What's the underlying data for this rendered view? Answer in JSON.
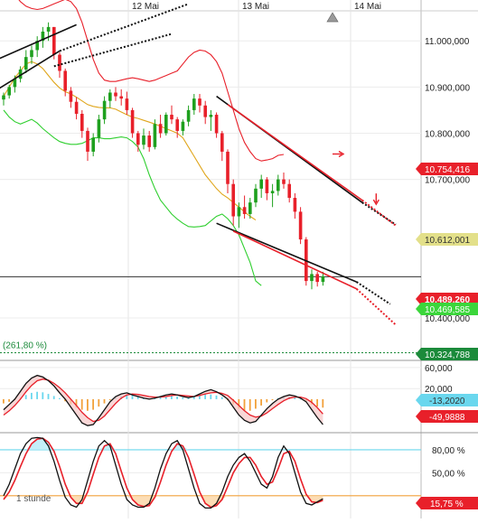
{
  "chart_data": {
    "type": "candlestick",
    "timeframe": "1 stunde",
    "dates": [
      "12 Mai",
      "13 Mai",
      "14 Mai"
    ],
    "price_axis": {
      "ticks": [
        "11.000,000",
        "10.900,000",
        "10.800,000",
        "10.700,000",
        "10.400,000"
      ],
      "tick_values": [
        11000,
        10900,
        10800,
        10700,
        10400
      ],
      "range": [
        10310,
        11065
      ]
    },
    "price_tags": [
      {
        "label": "10.754,416",
        "value": 10754.416,
        "color": "#e8202a",
        "text_color": "#ffffff"
      },
      {
        "label": "10.612,001",
        "value": 10612.001,
        "color": "#e3e08a",
        "text_color": "#333333"
      },
      {
        "label": "10.489,260",
        "value": 10489.26,
        "color": "#e8202a",
        "text_color": "#ffffff"
      },
      {
        "label": "10.469,585",
        "value": 10469.585,
        "color": "#3bd63b",
        "text_color": "#ffffff"
      },
      {
        "label": "10.324,788",
        "value": 10324.788,
        "color": "#1b8a3a",
        "text_color": "#ffffff"
      }
    ],
    "fib_label": "(261,80 %)",
    "fib_value": 10324.788,
    "candles": [
      [
        10873,
        10888,
        10860,
        10882
      ],
      [
        10882,
        10905,
        10875,
        10900
      ],
      [
        10900,
        10925,
        10888,
        10918
      ],
      [
        10918,
        10945,
        10910,
        10938
      ],
      [
        10938,
        10980,
        10930,
        10965
      ],
      [
        10965,
        10990,
        10950,
        10980
      ],
      [
        10980,
        11010,
        10965,
        11000
      ],
      [
        11000,
        11030,
        10985,
        11020
      ],
      [
        11020,
        11040,
        11000,
        11030
      ],
      [
        11030,
        11030,
        10960,
        10970
      ],
      [
        10970,
        10975,
        10920,
        10935
      ],
      [
        10935,
        10940,
        10880,
        10892
      ],
      [
        10892,
        10900,
        10855,
        10868
      ],
      [
        10868,
        10878,
        10830,
        10842
      ],
      [
        10842,
        10850,
        10790,
        10805
      ],
      [
        10805,
        10812,
        10740,
        10760
      ],
      [
        10760,
        10800,
        10750,
        10790
      ],
      [
        10790,
        10840,
        10780,
        10830
      ],
      [
        10830,
        10880,
        10820,
        10870
      ],
      [
        10870,
        10895,
        10855,
        10888
      ],
      [
        10888,
        10900,
        10870,
        10880
      ],
      [
        10880,
        10895,
        10860,
        10875
      ],
      [
        10875,
        10890,
        10840,
        10850
      ],
      [
        10850,
        10855,
        10790,
        10800
      ],
      [
        10800,
        10805,
        10760,
        10775
      ],
      [
        10775,
        10810,
        10765,
        10795
      ],
      [
        10795,
        10805,
        10760,
        10770
      ],
      [
        10770,
        10830,
        10765,
        10820
      ],
      [
        10820,
        10840,
        10790,
        10800
      ],
      [
        10800,
        10845,
        10795,
        10840
      ],
      [
        10840,
        10860,
        10820,
        10830
      ],
      [
        10830,
        10835,
        10790,
        10805
      ],
      [
        10805,
        10830,
        10795,
        10825
      ],
      [
        10825,
        10860,
        10815,
        10850
      ],
      [
        10850,
        10885,
        10840,
        10875
      ],
      [
        10875,
        10885,
        10845,
        10860
      ],
      [
        10860,
        10870,
        10820,
        10835
      ],
      [
        10835,
        10850,
        10805,
        10840
      ],
      [
        10840,
        10845,
        10790,
        10800
      ],
      [
        10800,
        10805,
        10740,
        10760
      ],
      [
        10760,
        10765,
        10670,
        10690
      ],
      [
        10690,
        10700,
        10600,
        10620
      ],
      [
        10620,
        10650,
        10595,
        10640
      ],
      [
        10640,
        10665,
        10615,
        10625
      ],
      [
        10625,
        10660,
        10615,
        10650
      ],
      [
        10650,
        10690,
        10640,
        10680
      ],
      [
        10680,
        10710,
        10660,
        10700
      ],
      [
        10700,
        10705,
        10655,
        10670
      ],
      [
        10670,
        10690,
        10640,
        10675
      ],
      [
        10675,
        10710,
        10665,
        10700
      ],
      [
        10700,
        10715,
        10680,
        10690
      ],
      [
        10690,
        10700,
        10650,
        10660
      ],
      [
        10660,
        10670,
        10615,
        10630
      ],
      [
        10630,
        10640,
        10560,
        10570
      ],
      [
        10570,
        10575,
        10470,
        10480
      ],
      [
        10480,
        10505,
        10462,
        10495
      ],
      [
        10495,
        10500,
        10468,
        10478
      ],
      [
        10478,
        10500,
        10470,
        10490
      ]
    ],
    "overlays": [
      {
        "name": "bollinger_upper",
        "color": "#e8202a",
        "values": [
          11150,
          11120,
          11100,
          11085,
          11075,
          11070,
          11068,
          11070,
          11075,
          11080,
          11085,
          11090,
          11085,
          11070,
          11040,
          11000,
          10960,
          10930,
          10915,
          10912,
          10912,
          10915,
          10918,
          10920,
          10918,
          10915,
          10912,
          10915,
          10920,
          10925,
          10930,
          10935,
          10950,
          10965,
          10975,
          10980,
          10978,
          10970,
          10955,
          10930,
          10890,
          10850,
          10810,
          10780,
          10760,
          10745,
          10740,
          10742,
          10745,
          10752,
          10754
        ]
      },
      {
        "name": "moving_average",
        "color": "#e0a61c",
        "values": [
          10880,
          10900,
          10920,
          10935,
          10950,
          10955,
          10950,
          10940,
          10925,
          10910,
          10898,
          10890,
          10885,
          10878,
          10870,
          10862,
          10858,
          10856,
          10855,
          10855,
          10852,
          10846,
          10840,
          10835,
          10832,
          10828,
          10824,
          10820,
          10815,
          10810,
          10805,
          10800,
          10790,
          10770,
          10750,
          10730,
          10710,
          10695,
          10680,
          10668,
          10660,
          10650,
          10640,
          10630,
          10620,
          10612
        ]
      },
      {
        "name": "bollinger_lower",
        "color": "#2fcf2f",
        "values": [
          10850,
          10835,
          10825,
          10820,
          10825,
          10830,
          10822,
          10810,
          10800,
          10790,
          10782,
          10778,
          10776,
          10776,
          10778,
          10784,
          10790,
          10790,
          10788,
          10788,
          10790,
          10792,
          10790,
          10782,
          10770,
          10745,
          10710,
          10680,
          10655,
          10640,
          10625,
          10614,
          10605,
          10598,
          10597,
          10598,
          10600,
          10610,
          10620,
          10625,
          10615,
          10600,
          10580,
          10550,
          10520,
          10480,
          10470
        ]
      }
    ],
    "trendlines": [
      {
        "from": [
          -2,
          10955
        ],
        "to": [
          13,
          11035
        ],
        "color": "#111111",
        "style": "solid"
      },
      {
        "from": [
          -2,
          10888
        ],
        "to": [
          10,
          10978
        ],
        "color": "#111111",
        "style": "solid"
      },
      {
        "from": [
          10,
          10978
        ],
        "to": [
          33,
          11080
        ],
        "color": "#111111",
        "style": "dotted"
      },
      {
        "from": [
          9,
          10945
        ],
        "to": [
          30,
          11015
        ],
        "color": "#111111",
        "style": "dotted"
      },
      {
        "from": [
          38,
          10880
        ],
        "to": [
          64,
          10650
        ],
        "color": "#111111",
        "style": "solid"
      },
      {
        "from": [
          64,
          10650
        ],
        "to": [
          70,
          10602
        ],
        "color": "#111111",
        "style": "dotted"
      },
      {
        "from": [
          40,
          10862
        ],
        "to": [
          64,
          10655
        ],
        "color": "#e8202a",
        "style": "solid"
      },
      {
        "from": [
          64,
          10655
        ],
        "to": [
          70,
          10600
        ],
        "color": "#e8202a",
        "style": "dotted"
      },
      {
        "from": [
          38,
          10605
        ],
        "to": [
          63,
          10478
        ],
        "color": "#111111",
        "style": "solid"
      },
      {
        "from": [
          63,
          10478
        ],
        "to": [
          69,
          10430
        ],
        "color": "#111111",
        "style": "dotted"
      },
      {
        "from": [
          41,
          10588
        ],
        "to": [
          63,
          10463
        ],
        "color": "#e8202a",
        "style": "solid"
      },
      {
        "from": [
          63,
          10463
        ],
        "to": [
          70,
          10385
        ],
        "color": "#e8202a",
        "style": "dotted"
      }
    ],
    "arrows": [
      {
        "at": [
          60,
          10755
        ],
        "direction": "right",
        "color": "#e8202a"
      },
      {
        "at": [
          66.5,
          10650
        ],
        "direction": "down",
        "color": "#e8202a"
      }
    ],
    "macd": {
      "ticks": [
        "60,000",
        "20,000"
      ],
      "tick_values": [
        60,
        20
      ],
      "range": [
        -60,
        70
      ],
      "tags": [
        {
          "label": "-13,2020",
          "value": -13.202,
          "color": "#6ad7ee",
          "text_color": "#333333"
        },
        {
          "label": "-49,9888",
          "value": -49.9888,
          "color": "#e8202a",
          "text_color": "#ffffff"
        }
      ],
      "histogram": [
        -8,
        -5,
        -2,
        3,
        8,
        12,
        14,
        13,
        10,
        6,
        2,
        -4,
        -10,
        -16,
        -20,
        -22,
        -20,
        -14,
        -8,
        -2,
        3,
        6,
        8,
        7,
        5,
        3,
        2,
        3,
        5,
        6,
        6,
        5,
        3,
        4,
        6,
        8,
        10,
        9,
        7,
        4,
        -2,
        -10,
        -18,
        -22,
        -22,
        -18,
        -12,
        -6,
        -2,
        2,
        5,
        6,
        4,
        1,
        -4,
        -10,
        -14,
        -16
      ],
      "line_black": [
        -20,
        -10,
        0,
        15,
        30,
        40,
        45,
        42,
        35,
        25,
        12,
        0,
        -15,
        -30,
        -45,
        -50,
        -48,
        -35,
        -20,
        -5,
        5,
        10,
        12,
        8,
        5,
        2,
        0,
        2,
        5,
        8,
        10,
        8,
        5,
        3,
        5,
        10,
        15,
        18,
        14,
        8,
        0,
        -15,
        -30,
        -40,
        -45,
        -42,
        -30,
        -18,
        -8,
        0,
        5,
        8,
        6,
        2,
        -5,
        -20,
        -35,
        -48
      ],
      "line_red": [
        -30,
        -22,
        -12,
        0,
        14,
        26,
        35,
        38,
        36,
        30,
        22,
        12,
        0,
        -12,
        -25,
        -35,
        -42,
        -40,
        -32,
        -20,
        -8,
        2,
        8,
        10,
        9,
        7,
        5,
        4,
        4,
        5,
        7,
        8,
        7,
        6,
        5,
        7,
        10,
        12,
        13,
        11,
        7,
        -2,
        -12,
        -22,
        -30,
        -34,
        -32,
        -26,
        -18,
        -10,
        -3,
        2,
        4,
        4,
        1,
        -6,
        -16,
        -28
      ]
    },
    "stochastic": {
      "label": "1 stunde",
      "ticks": [
        "80,00 %",
        "50,00 %"
      ],
      "tick_values": [
        80,
        50
      ],
      "range": [
        -5,
        100
      ],
      "tags": [
        {
          "label": "15,75 %",
          "value": 15.75,
          "color": "#e8202a",
          "text_color": "#ffffff"
        }
      ],
      "bands": [
        {
          "value": 80,
          "color": "#6ad7ee"
        },
        {
          "value": 20,
          "color": "#f2a13a"
        }
      ],
      "line_black": [
        20,
        35,
        55,
        75,
        88,
        95,
        96,
        95,
        85,
        65,
        40,
        18,
        8,
        5,
        15,
        40,
        65,
        85,
        92,
        85,
        60,
        35,
        15,
        8,
        5,
        5,
        10,
        30,
        55,
        75,
        88,
        92,
        80,
        55,
        30,
        10,
        4,
        4,
        10,
        25,
        45,
        60,
        70,
        75,
        65,
        50,
        35,
        30,
        45,
        70,
        85,
        75,
        50,
        25,
        10,
        8,
        12,
        16
      ],
      "line_red": [
        15,
        25,
        40,
        58,
        75,
        88,
        94,
        95,
        90,
        78,
        58,
        35,
        18,
        10,
        10,
        25,
        48,
        70,
        85,
        88,
        75,
        52,
        30,
        15,
        8,
        6,
        7,
        18,
        38,
        60,
        78,
        88,
        85,
        70,
        48,
        25,
        10,
        5,
        7,
        15,
        32,
        50,
        62,
        70,
        70,
        60,
        45,
        35,
        38,
        55,
        75,
        78,
        65,
        42,
        22,
        12,
        11,
        14
      ]
    }
  }
}
